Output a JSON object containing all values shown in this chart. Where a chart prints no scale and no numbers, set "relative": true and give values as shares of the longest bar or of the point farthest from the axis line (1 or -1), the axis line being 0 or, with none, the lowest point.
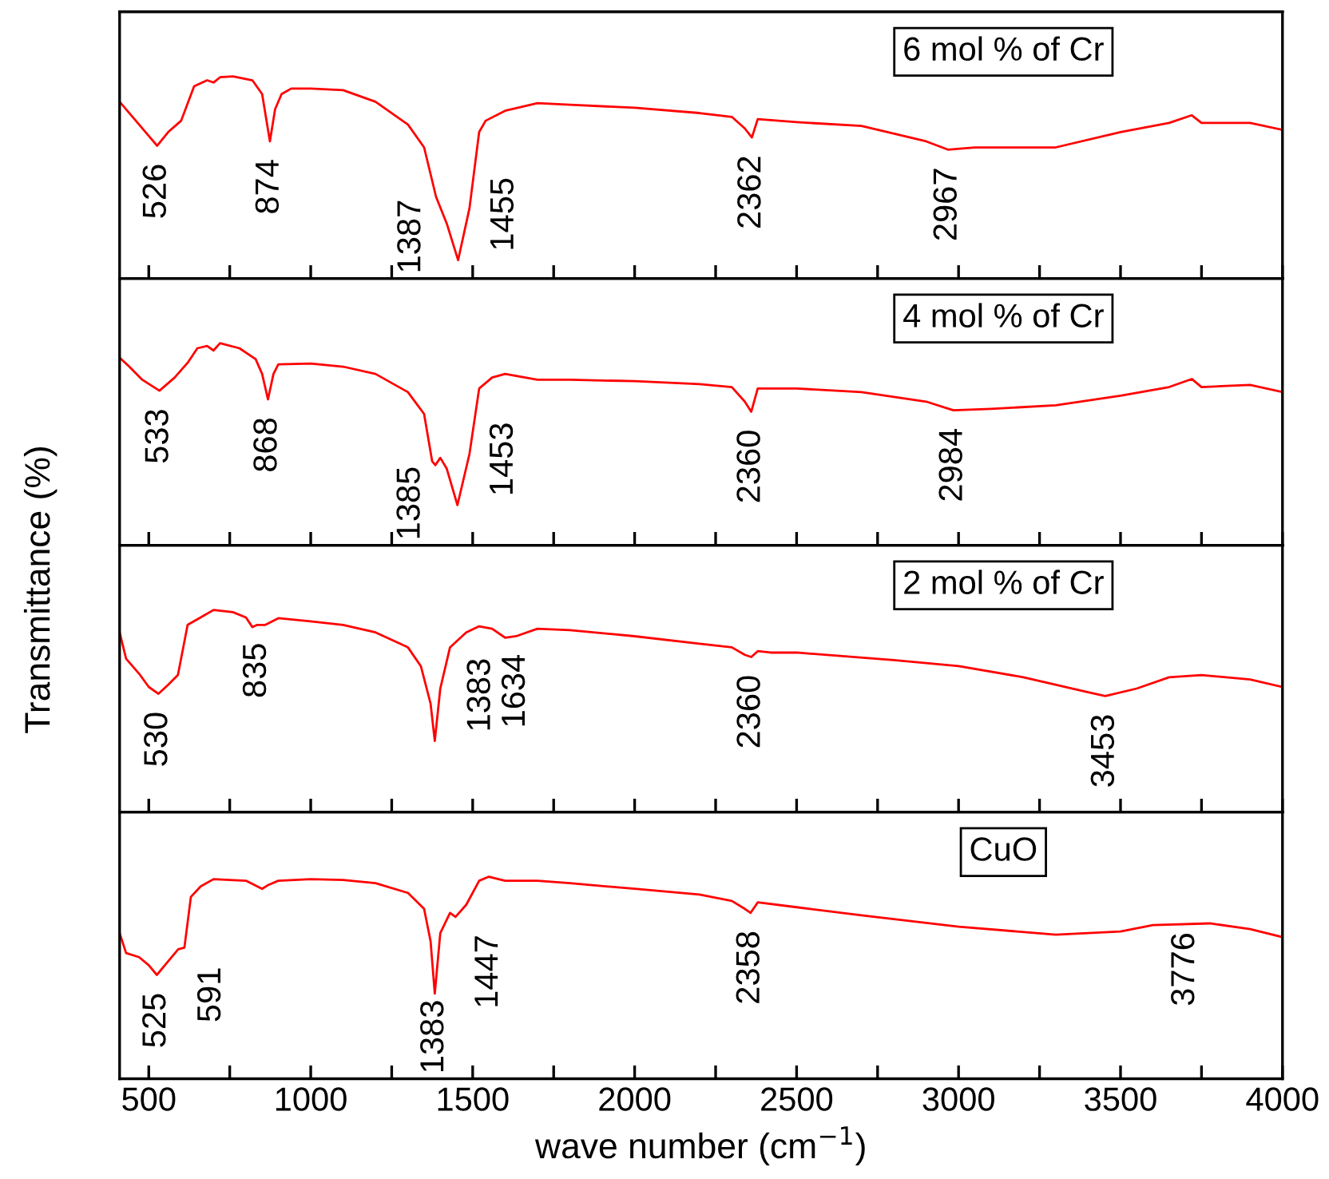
{
  "chart_data": [
    {
      "type": "line",
      "relative": true,
      "xlim": [
        410,
        4000
      ],
      "xticks": [
        500,
        {
          "value": 750,
          "label": null
        },
        1000,
        {
          "value": 1250,
          "label": null
        },
        1500,
        {
          "value": 1750,
          "label": null
        },
        2000,
        {
          "value": 2250,
          "label": null
        },
        2500,
        {
          "value": 2750,
          "label": null
        },
        3000,
        {
          "value": 3250,
          "label": null
        },
        3500,
        {
          "value": 3750,
          "label": null
        },
        4000
      ],
      "tick_labels": false,
      "line_style": "solid",
      "marker": "none",
      "grid": false,
      "legend": false,
      "ylabel": "Transmittance (%)",
      "annotations": [
        "6 mol % of Cr",
        {
          "text": "526",
          "x": 526,
          "y": 0.657
        },
        {
          "text": "874",
          "x": 874,
          "y": 0.679
        },
        {
          "text": "1387",
          "x": 1387,
          "y": 0.404
        },
        {
          "text": "1455",
          "x": 1455,
          "y": 0.091
        },
        {
          "text": "2362",
          "x": 2362,
          "y": 0.698
        },
        {
          "text": "2967",
          "x": 2967,
          "y": 0.638
        }
      ],
      "series": [
        {
          "color": "#ff0000",
          "x": [
            410,
            450,
            500,
            526,
            560,
            600,
            640,
            680,
            700,
            720,
            760,
            820,
            850,
            874,
            890,
            910,
            940,
            1000,
            1100,
            1200,
            1300,
            1350,
            1387,
            1420,
            1455,
            1490,
            1520,
            1540,
            1600,
            1700,
            1800,
            2000,
            2200,
            2300,
            2340,
            2362,
            2380,
            2500,
            2700,
            2900,
            2967,
            3050,
            3300,
            3500,
            3650,
            3720,
            3750,
            3900,
            4000
          ],
          "values": [
            0.875,
            0.8,
            0.706,
            0.657,
            0.725,
            0.781,
            0.951,
            0.981,
            0.97,
            0.996,
            1.0,
            0.981,
            0.913,
            0.679,
            0.838,
            0.913,
            0.94,
            0.94,
            0.932,
            0.875,
            0.762,
            0.649,
            0.404,
            0.272,
            0.091,
            0.347,
            0.725,
            0.781,
            0.83,
            0.868,
            0.86,
            0.845,
            0.819,
            0.8,
            0.743,
            0.698,
            0.789,
            0.774,
            0.755,
            0.679,
            0.638,
            0.649,
            0.649,
            0.725,
            0.77,
            0.808,
            0.77,
            0.77,
            0.736
          ]
        }
      ]
    },
    {
      "type": "line",
      "relative": true,
      "xlim": [
        410,
        4000
      ],
      "xticks": [
        500,
        {
          "value": 750,
          "label": null
        },
        1000,
        {
          "value": 1250,
          "label": null
        },
        1500,
        {
          "value": 1750,
          "label": null
        },
        2000,
        {
          "value": 2250,
          "label": null
        },
        2500,
        {
          "value": 2750,
          "label": null
        },
        3000,
        {
          "value": 3250,
          "label": null
        },
        3500,
        {
          "value": 3750,
          "label": null
        },
        4000
      ],
      "tick_labels": false,
      "line_style": "solid",
      "marker": "none",
      "grid": false,
      "legend": false,
      "annotations": [
        "4 mol % of Cr",
        {
          "text": "533",
          "x": 533,
          "y": 0.765
        },
        {
          "text": "868",
          "x": 868,
          "y": 0.722
        },
        {
          "text": "1385",
          "x": 1385,
          "y": 0.397
        },
        {
          "text": "1453",
          "x": 1453,
          "y": 0.199
        },
        {
          "text": "2360",
          "x": 2360,
          "y": 0.661
        },
        {
          "text": "2984",
          "x": 2984,
          "y": 0.668
        }
      ],
      "series": [
        {
          "color": "#ff0000",
          "x": [
            410,
            440,
            480,
            533,
            580,
            620,
            650,
            680,
            700,
            720,
            780,
            830,
            850,
            868,
            885,
            900,
            1000,
            1100,
            1200,
            1300,
            1350,
            1375,
            1385,
            1400,
            1420,
            1453,
            1490,
            1520,
            1560,
            1600,
            1700,
            1800,
            2000,
            2200,
            2300,
            2340,
            2360,
            2380,
            2500,
            2700,
            2900,
            2984,
            3100,
            3300,
            3500,
            3650,
            3720,
            3750,
            3900,
            4000
          ],
          "values": [
            0.928,
            0.884,
            0.819,
            0.765,
            0.83,
            0.903,
            0.975,
            0.986,
            0.964,
            1.0,
            0.975,
            0.921,
            0.848,
            0.722,
            0.848,
            0.895,
            0.899,
            0.884,
            0.848,
            0.758,
            0.65,
            0.415,
            0.397,
            0.433,
            0.379,
            0.199,
            0.451,
            0.776,
            0.83,
            0.848,
            0.819,
            0.819,
            0.812,
            0.798,
            0.783,
            0.711,
            0.661,
            0.776,
            0.776,
            0.758,
            0.711,
            0.668,
            0.675,
            0.693,
            0.74,
            0.783,
            0.823,
            0.783,
            0.794,
            0.758
          ]
        }
      ]
    },
    {
      "type": "line",
      "relative": true,
      "xlim": [
        410,
        4000
      ],
      "xticks": [
        500,
        {
          "value": 750,
          "label": null
        },
        1000,
        {
          "value": 1250,
          "label": null
        },
        1500,
        {
          "value": 1750,
          "label": null
        },
        2000,
        {
          "value": 2250,
          "label": null
        },
        2500,
        {
          "value": 2750,
          "label": null
        },
        3000,
        {
          "value": 3250,
          "label": null
        },
        3500,
        {
          "value": 3750,
          "label": null
        },
        4000
      ],
      "tick_labels": false,
      "line_style": "solid",
      "marker": "none",
      "grid": false,
      "legend": false,
      "annotations": [
        "2 mol % of Cr",
        {
          "text": "530",
          "x": 530,
          "y": 0.585
        },
        {
          "text": "835",
          "x": 835,
          "y": 0.926
        },
        {
          "text": "1383",
          "x": 1383,
          "y": 0.352
        },
        {
          "text": "1634",
          "x": 1634,
          "y": 0.87
        },
        {
          "text": "2360",
          "x": 2360,
          "y": 0.767
        },
        {
          "text": "3453",
          "x": 3453,
          "y": 0.574
        }
      ],
      "series": [
        {
          "color": "#ff0000",
          "x": [
            410,
            430,
            470,
            500,
            530,
            560,
            590,
            620,
            660,
            700,
            760,
            800,
            820,
            835,
            860,
            900,
            1000,
            1100,
            1200,
            1300,
            1340,
            1370,
            1383,
            1400,
            1430,
            1480,
            1520,
            1560,
            1600,
            1634,
            1700,
            1800,
            2000,
            2200,
            2300,
            2340,
            2360,
            2380,
            2420,
            2500,
            2800,
            3000,
            3200,
            3400,
            3453,
            3550,
            3650,
            3750,
            3900,
            4000
          ],
          "values": [
            0.889,
            0.759,
            0.685,
            0.619,
            0.585,
            0.63,
            0.678,
            0.926,
            0.963,
            1.0,
            0.989,
            0.963,
            0.915,
            0.926,
            0.926,
            0.959,
            0.944,
            0.926,
            0.889,
            0.815,
            0.722,
            0.537,
            0.352,
            0.611,
            0.815,
            0.889,
            0.919,
            0.907,
            0.863,
            0.87,
            0.907,
            0.9,
            0.87,
            0.833,
            0.815,
            0.778,
            0.767,
            0.796,
            0.789,
            0.789,
            0.752,
            0.722,
            0.667,
            0.593,
            0.574,
            0.611,
            0.667,
            0.678,
            0.656,
            0.619
          ]
        }
      ]
    },
    {
      "type": "line",
      "relative": true,
      "xlim": [
        410,
        4000
      ],
      "xticks": [
        500,
        {
          "value": 750,
          "label": null
        },
        1000,
        {
          "value": 1250,
          "label": null
        },
        1500,
        {
          "value": 1750,
          "label": null
        },
        2000,
        {
          "value": 2250,
          "label": null
        },
        2500,
        {
          "value": 2750,
          "label": null
        },
        3000,
        {
          "value": 3250,
          "label": null
        },
        3500,
        {
          "value": 3750,
          "label": null
        },
        4000
      ],
      "tick_labels": "x",
      "line_style": "solid",
      "marker": "none",
      "grid": false,
      "legend": false,
      "xlabel": "wave number (cm$^{−1}$)",
      "annotations": [
        "CuO",
        {
          "text": "525",
          "x": 525,
          "y": 0.514
        },
        {
          "text": "591",
          "x": 591,
          "y": 0.641
        },
        {
          "text": "1383",
          "x": 1383,
          "y": 0.422
        },
        {
          "text": "1447",
          "x": 1447,
          "y": 0.801
        },
        {
          "text": "2358",
          "x": 2358,
          "y": 0.821
        },
        {
          "text": "3776",
          "x": 3776,
          "y": 0.769
        }
      ],
      "series": [
        {
          "color": "#ff0000",
          "x": [
            410,
            430,
            470,
            500,
            525,
            560,
            591,
            610,
            630,
            660,
            700,
            800,
            850,
            870,
            900,
            1000,
            1100,
            1200,
            1300,
            1350,
            1370,
            1383,
            1400,
            1430,
            1447,
            1480,
            1520,
            1550,
            1600,
            1700,
            1800,
            2000,
            2200,
            2300,
            2340,
            2358,
            2380,
            2500,
            2700,
            3000,
            3300,
            3500,
            3600,
            3776,
            3900,
            4000
          ],
          "values": [
            0.721,
            0.622,
            0.602,
            0.562,
            0.514,
            0.582,
            0.641,
            0.649,
            0.9,
            0.952,
            0.988,
            0.98,
            0.94,
            0.96,
            0.98,
            0.988,
            0.984,
            0.968,
            0.92,
            0.841,
            0.681,
            0.422,
            0.721,
            0.821,
            0.801,
            0.861,
            0.98,
            1.0,
            0.98,
            0.98,
            0.968,
            0.94,
            0.912,
            0.88,
            0.841,
            0.821,
            0.873,
            0.849,
            0.809,
            0.753,
            0.713,
            0.729,
            0.761,
            0.769,
            0.741,
            0.701
          ]
        }
      ]
    }
  ]
}
